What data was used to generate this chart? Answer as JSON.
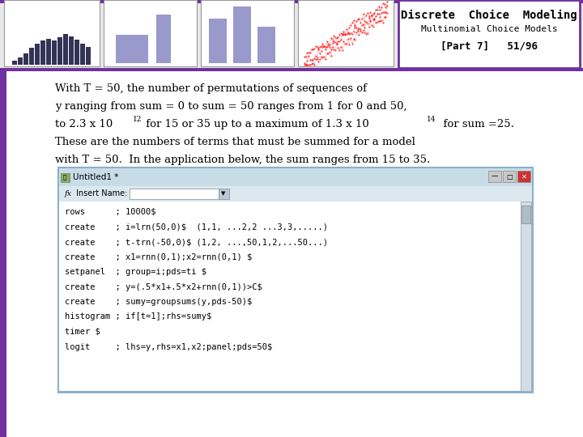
{
  "title_main": "Discrete  Choice  Modeling",
  "title_sub": "Multinomial Choice Models",
  "title_part": "[Part 7]   51/96",
  "purple": "#7030a0",
  "code_lines": [
    "rows      ; 10000$",
    "create    ; i=lrn(50,0)$  (1,1, ...2,2 ...3,3,.....)",
    "create    ; t-trn(-50,0)$ (1,2, ...,50,1,2,...50...)",
    "create    ; x1=rnn(0,1);x2=rnn(0,1) $",
    "setpanel  ; group=i;pds=ti $",
    "create    ; y=(.5*x1+.5*x2+rnn(0,1))>C$",
    "create    ; sumy=groupsums(y,pds-50)$",
    "histogram ; if[t=1];rhs=sumy$",
    "timer $",
    "logit     ; lhs=y,rhs=x1,x2;panel;pds=50$"
  ],
  "window_border": "#8ab0cc",
  "titlebar_bg": "#c8dce8",
  "formulabar_bg": "#dce8f0",
  "code_bg": "#ffffff",
  "scrollbar_bg": "#d0dce8",
  "header_chart_bg": "#e0e0e0",
  "body_bg": "#ffffff"
}
